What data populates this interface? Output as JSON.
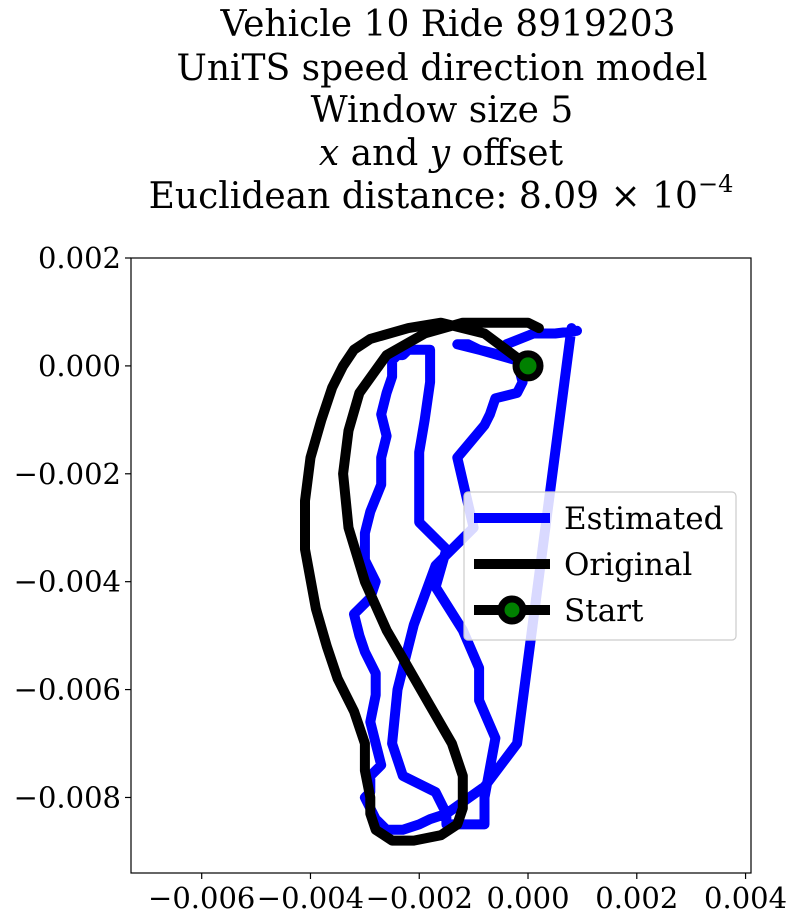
{
  "chart_data": {
    "type": "line",
    "title_lines": [
      "Vehicle 10 Ride 8919203",
      "UniTS speed direction model",
      "Window size 5",
      "x and y offset",
      "Euclidean distance: 8.09 × 10⁻⁴"
    ],
    "title_line4_parts": {
      "x": "x",
      "and": " and ",
      "y": "y",
      "rest": " offset"
    },
    "title_line5_parts": {
      "prefix": "Euclidean distance: 8.09 × 10",
      "exponent": "−4"
    },
    "xlabel": "",
    "ylabel": "",
    "xlim": [
      -0.0073,
      0.0041
    ],
    "ylim": [
      -0.0094,
      0.002
    ],
    "xticks": [
      -0.006,
      -0.004,
      -0.002,
      0.0,
      0.002,
      0.004
    ],
    "xtick_labels": [
      "−0.006",
      "−0.004",
      "−0.002",
      "0.000",
      "0.002",
      "0.004"
    ],
    "yticks": [
      0.002,
      0.0,
      -0.002,
      -0.004,
      -0.006,
      -0.008
    ],
    "ytick_labels": [
      "0.002",
      "0.000",
      "−0.002",
      "−0.004",
      "−0.006",
      "−0.008"
    ],
    "grid": false,
    "legend_position": "center-right",
    "series": [
      {
        "name": "Estimated",
        "color": "#0000ff",
        "x": [
          0.0009,
          0.0005,
          0.0001,
          -0.0004,
          -0.0005,
          -0.0013,
          -0.0011,
          -0.0009,
          -0.0002,
          -0.0001,
          -0.0002,
          -0.0006,
          -0.0007,
          -0.0008,
          -0.0013,
          -0.001,
          -0.0017,
          -0.0021,
          -0.0024,
          -0.0025,
          -0.0023,
          -0.0017,
          -0.0015,
          -0.0015,
          -0.0014,
          -0.0008,
          -0.0008,
          -0.0006,
          -0.0009,
          -0.0009,
          -0.0012,
          -0.0017,
          -0.0015,
          -0.002,
          -0.002,
          -0.002,
          -0.0019,
          -0.0018,
          -0.0018,
          -0.002,
          -0.0022,
          -0.0023,
          -0.0024,
          -0.0025,
          -0.0025,
          -0.0026,
          -0.0027,
          -0.0026,
          -0.0027,
          -0.0027,
          -0.0029,
          -0.003,
          -0.003,
          -0.0028,
          -0.0029,
          -0.0032,
          -0.0031,
          -0.003,
          -0.0028,
          -0.0028,
          -0.0029,
          -0.0028,
          -0.0027,
          -0.0029,
          -0.0029,
          -0.0029,
          -0.003,
          -0.0029,
          -0.0028,
          -0.0026,
          -0.0023,
          -0.002,
          -0.0018,
          -0.0015,
          -0.0008,
          -0.0002,
          0.0008
        ],
        "y": [
          0.00065,
          0.0006,
          0.0006,
          0.0004,
          0.0002,
          0.0004,
          0.0004,
          0.0003,
          0.0001,
          -0.0003,
          -0.0005,
          -0.0006,
          -0.0009,
          -0.0011,
          -0.0017,
          -0.003,
          -0.0037,
          -0.0048,
          -0.006,
          -0.007,
          -0.0076,
          -0.0079,
          -0.0083,
          -0.0085,
          -0.0085,
          -0.0085,
          -0.008,
          -0.0069,
          -0.0062,
          -0.0056,
          -0.0049,
          -0.0041,
          -0.0034,
          -0.0029,
          -0.0022,
          -0.0016,
          -0.001,
          -0.0003,
          0.0003,
          0.0003,
          0.0003,
          0.0002,
          0.0002,
          0.0001,
          -0.0002,
          -0.0005,
          -0.0009,
          -0.0013,
          -0.0017,
          -0.0022,
          -0.0027,
          -0.0031,
          -0.0036,
          -0.004,
          -0.0043,
          -0.0046,
          -0.005,
          -0.0053,
          -0.0057,
          -0.0061,
          -0.0066,
          -0.007,
          -0.0074,
          -0.0076,
          -0.0078,
          -0.0079,
          -0.008,
          -0.0082,
          -0.0084,
          -0.0086,
          -0.0086,
          -0.0085,
          -0.0084,
          -0.0083,
          -0.0078,
          -0.007,
          0.0007
        ]
      },
      {
        "name": "Original",
        "color": "#000000",
        "x": [
          0.0,
          -0.0008,
          -0.0012,
          -0.0016,
          -0.0022,
          -0.0029,
          -0.0032,
          -0.0034,
          -0.0036,
          -0.0038,
          -0.004,
          -0.0041,
          -0.0041,
          -0.0039,
          -0.0037,
          -0.0035,
          -0.0032,
          -0.003,
          -0.003,
          -0.0029,
          -0.0029,
          -0.0028,
          -0.0025,
          -0.0021,
          -0.0016,
          -0.0013,
          -0.0012,
          -0.0012,
          -0.0014,
          -0.0018,
          -0.0022,
          -0.0026,
          -0.003,
          -0.0033,
          -0.0034,
          -0.0033,
          -0.0031,
          -0.0026,
          -0.0019,
          -0.0012,
          -0.0006,
          0.0,
          0.0002
        ],
        "y": [
          0.0,
          0.0006,
          0.0007,
          0.0008,
          0.0007,
          0.0005,
          0.0003,
          0.0,
          -0.0004,
          -0.001,
          -0.0017,
          -0.0025,
          -0.0034,
          -0.0045,
          -0.0052,
          -0.0058,
          -0.0064,
          -0.007,
          -0.0075,
          -0.008,
          -0.0083,
          -0.0086,
          -0.0088,
          -0.0088,
          -0.0087,
          -0.0085,
          -0.0082,
          -0.0076,
          -0.007,
          -0.0063,
          -0.0056,
          -0.0049,
          -0.004,
          -0.003,
          -0.002,
          -0.0012,
          -0.0005,
          0.0002,
          0.0006,
          0.0008,
          0.0008,
          0.0008,
          0.0007
        ]
      }
    ],
    "start_marker": {
      "name": "Start",
      "x": 0.0,
      "y": 0.0,
      "edge_color": "#000000",
      "face_color": "#008000"
    },
    "legend_labels": [
      "Estimated",
      "Original",
      "Start"
    ]
  }
}
